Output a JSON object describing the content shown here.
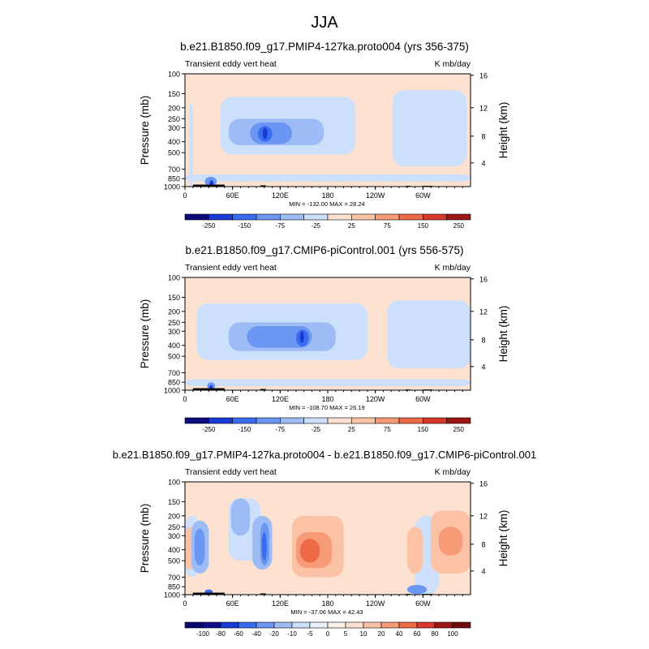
{
  "main_title": "JJA",
  "colors": {
    "blues": [
      "#0d0d8c",
      "#1a3ad6",
      "#3a6cf0",
      "#6b96f2",
      "#9dbcf5",
      "#cce0fb"
    ],
    "reds": [
      "#fde2d2",
      "#fcc2a6",
      "#f79a78",
      "#ee6a47",
      "#d8382c",
      "#9c1616"
    ],
    "terrain": "#000000",
    "frame": "#000000"
  },
  "chart_data": [
    {
      "type": "contour",
      "title": "b.e21.B1850.f09_g17.PMIP4-127ka.proto004 (yrs 356-375)",
      "left_label": "Transient eddy vert heat",
      "right_label": "K mb/day",
      "ylabel": "Pressure (mb)",
      "ylabel_right": "Height (km)",
      "y_ticks": [
        "100",
        "150",
        "200",
        "250",
        "300",
        "400",
        "500",
        "700",
        "850",
        "1000"
      ],
      "y_ticks_right": [
        "16",
        "12",
        "8",
        "4"
      ],
      "x_ticks": [
        "0",
        "60E",
        "120E",
        "180",
        "120W",
        "60W"
      ],
      "stats": "MIN = -132.00  MAX = 28.24",
      "colorbar_labels": [
        "-250",
        "-150",
        "-75",
        "-25",
        "25",
        "75",
        "150",
        "250"
      ],
      "xlim": [
        0,
        360
      ],
      "ylim": [
        1000,
        100
      ]
    },
    {
      "type": "contour",
      "title": "b.e21.B1850.f09_g17.CMIP6-piControl.001 (yrs 556-575)",
      "left_label": "Transient eddy vert heat",
      "right_label": "K mb/day",
      "ylabel": "Pressure (mb)",
      "ylabel_right": "Height (km)",
      "y_ticks": [
        "100",
        "150",
        "200",
        "250",
        "300",
        "400",
        "500",
        "700",
        "850",
        "1000"
      ],
      "y_ticks_right": [
        "16",
        "12",
        "8",
        "4"
      ],
      "x_ticks": [
        "0",
        "60E",
        "120E",
        "180",
        "120W",
        "60W"
      ],
      "stats": "MIN = -108.70  MAX = 26.19",
      "colorbar_labels": [
        "-250",
        "-150",
        "-75",
        "-25",
        "25",
        "75",
        "150",
        "250"
      ],
      "xlim": [
        0,
        360
      ],
      "ylim": [
        1000,
        100
      ]
    },
    {
      "type": "contour",
      "title": "b.e21.B1850.f09_g17.PMIP4-127ka.proto004 - b.e21.B1850.f09_g17.CMIP6-piControl.001",
      "left_label": "Transient eddy vert heat",
      "right_label": "K mb/day",
      "ylabel": "Pressure (mb)",
      "ylabel_right": "Height (km)",
      "y_ticks": [
        "100",
        "150",
        "200",
        "250",
        "300",
        "400",
        "500",
        "700",
        "850",
        "1000"
      ],
      "y_ticks_right": [
        "16",
        "12",
        "8",
        "4"
      ],
      "x_ticks": [
        "0",
        "60E",
        "120E",
        "180",
        "120W",
        "60W"
      ],
      "stats": "MIN = -37.06  MAX = 42.43",
      "colorbar_labels": [
        "-100",
        "-80",
        "-60",
        "-40",
        "-20",
        "-10",
        "-5",
        "0",
        "5",
        "10",
        "20",
        "40",
        "60",
        "80",
        "100"
      ],
      "xlim": [
        0,
        360
      ],
      "ylim": [
        1000,
        100
      ]
    }
  ]
}
